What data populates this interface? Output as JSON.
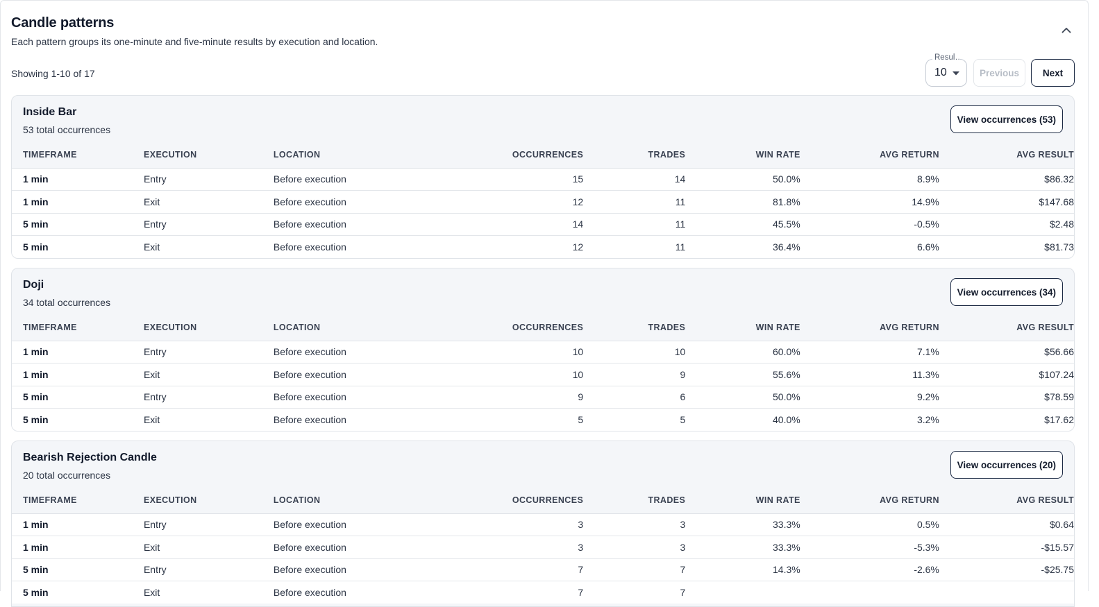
{
  "header": {
    "title": "Candle patterns",
    "subtitle": "Each pattern groups its one-minute and five-minute results by execution and location."
  },
  "pagination": {
    "showing": "Showing 1-10 of 17",
    "per_page_label": "Resul…",
    "per_page_value": "10",
    "previous_label": "Previous",
    "next_label": "Next"
  },
  "columns": [
    "TIMEFRAME",
    "EXECUTION",
    "LOCATION",
    "OCCURRENCES",
    "TRADES",
    "WIN RATE",
    "AVG RETURN",
    "AVG RESULT"
  ],
  "colors": {
    "positive": "#2e7d32",
    "negative": "#c62828",
    "accent": "#1c2a44"
  },
  "patterns": [
    {
      "name": "Inside Bar",
      "total": "53 total occurrences",
      "button": "View occurrences (53)",
      "rows": [
        {
          "timeframe": "1 min",
          "execution": "Entry",
          "location": "Before execution",
          "occurrences": "15",
          "trades": "14",
          "win_rate": "50.0%",
          "avg_return": "8.9%",
          "avg_result": "$86.32"
        },
        {
          "timeframe": "1 min",
          "execution": "Exit",
          "location": "Before execution",
          "occurrences": "12",
          "trades": "11",
          "win_rate": "81.8%",
          "avg_return": "14.9%",
          "avg_result": "$147.68"
        },
        {
          "timeframe": "5 min",
          "execution": "Entry",
          "location": "Before execution",
          "occurrences": "14",
          "trades": "11",
          "win_rate": "45.5%",
          "avg_return": "-0.5%",
          "avg_result": "$2.48"
        },
        {
          "timeframe": "5 min",
          "execution": "Exit",
          "location": "Before execution",
          "occurrences": "12",
          "trades": "11",
          "win_rate": "36.4%",
          "avg_return": "6.6%",
          "avg_result": "$81.73"
        }
      ]
    },
    {
      "name": "Doji",
      "total": "34 total occurrences",
      "button": "View occurrences (34)",
      "rows": [
        {
          "timeframe": "1 min",
          "execution": "Entry",
          "location": "Before execution",
          "occurrences": "10",
          "trades": "10",
          "win_rate": "60.0%",
          "avg_return": "7.1%",
          "avg_result": "$56.66"
        },
        {
          "timeframe": "1 min",
          "execution": "Exit",
          "location": "Before execution",
          "occurrences": "10",
          "trades": "9",
          "win_rate": "55.6%",
          "avg_return": "11.3%",
          "avg_result": "$107.24"
        },
        {
          "timeframe": "5 min",
          "execution": "Entry",
          "location": "Before execution",
          "occurrences": "9",
          "trades": "6",
          "win_rate": "50.0%",
          "avg_return": "9.2%",
          "avg_result": "$78.59"
        },
        {
          "timeframe": "5 min",
          "execution": "Exit",
          "location": "Before execution",
          "occurrences": "5",
          "trades": "5",
          "win_rate": "40.0%",
          "avg_return": "3.2%",
          "avg_result": "$17.62"
        }
      ]
    },
    {
      "name": "Bearish Rejection Candle",
      "total": "20 total occurrences",
      "button": "View occurrences (20)",
      "rows": [
        {
          "timeframe": "1 min",
          "execution": "Entry",
          "location": "Before execution",
          "occurrences": "3",
          "trades": "3",
          "win_rate": "33.3%",
          "avg_return": "0.5%",
          "avg_result": "$0.64"
        },
        {
          "timeframe": "1 min",
          "execution": "Exit",
          "location": "Before execution",
          "occurrences": "3",
          "trades": "3",
          "win_rate": "33.3%",
          "avg_return": "-5.3%",
          "avg_result": "-$15.57"
        },
        {
          "timeframe": "5 min",
          "execution": "Entry",
          "location": "Before execution",
          "occurrences": "7",
          "trades": "7",
          "win_rate": "14.3%",
          "avg_return": "-2.6%",
          "avg_result": "-$25.75"
        },
        {
          "timeframe": "5 min",
          "execution": "Exit",
          "location": "Before execution",
          "occurrences": "7",
          "trades": "7",
          "win_rate": "",
          "avg_return": "",
          "avg_result": ""
        }
      ]
    }
  ]
}
